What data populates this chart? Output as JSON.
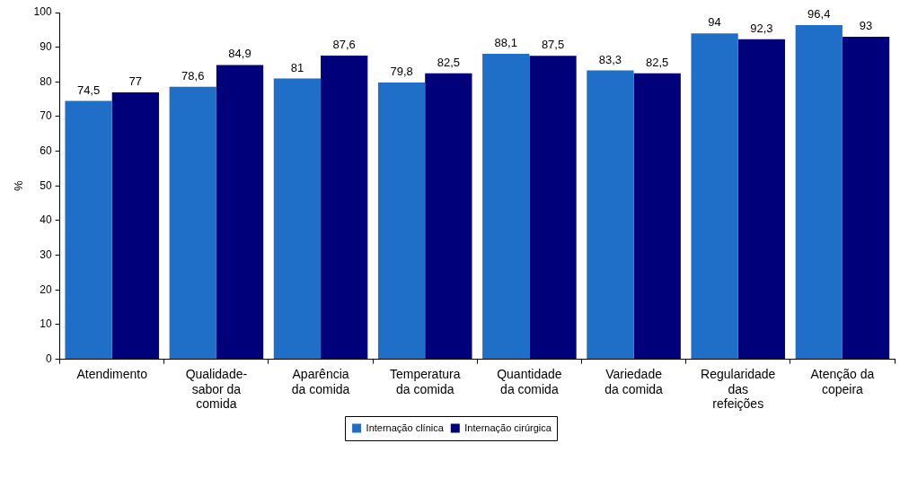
{
  "chart_data": {
    "type": "bar",
    "ylabel": "%",
    "categories": [
      "Atendimento",
      "Qualidade-sabor da comida",
      "Aparência da comida",
      "Temperatura da comida",
      "Quantidade da comida",
      "Variedade da comida",
      "Regularidade das refeições",
      "Atenção da copeira"
    ],
    "series": [
      {
        "name": "Internação clínica",
        "color": "#1f6fc8",
        "values": [
          74.5,
          78.6,
          81,
          79.8,
          88.1,
          83.3,
          94,
          96.4
        ],
        "value_labels": [
          "74,5",
          "78,6",
          "81",
          "79,8",
          "88,1",
          "83,3",
          "94",
          "96,4"
        ]
      },
      {
        "name": "Internação cirúrgica",
        "color": "#00007a",
        "values": [
          77,
          84.9,
          87.6,
          82.5,
          87.5,
          82.5,
          92.3,
          93
        ],
        "value_labels": [
          "77",
          "84,9",
          "87,6",
          "82,5",
          "87,5",
          "82,5",
          "92,3",
          "93"
        ]
      }
    ],
    "ylim": [
      0,
      100
    ],
    "yticks": [
      0,
      10,
      20,
      30,
      40,
      50,
      60,
      70,
      80,
      90,
      100
    ],
    "grid": false,
    "legend": "bottom"
  }
}
